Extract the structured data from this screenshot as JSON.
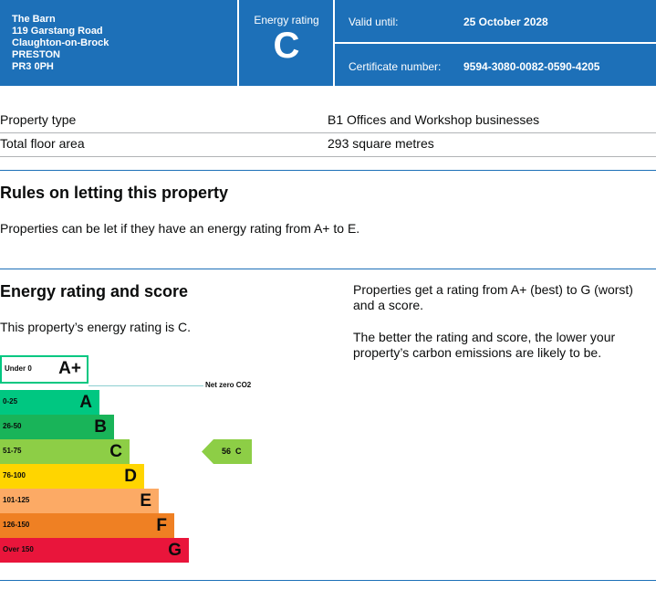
{
  "header": {
    "address": [
      "The Barn",
      "119 Garstang Road",
      "Claughton-on-Brock",
      "PRESTON",
      "PR3 0PH"
    ],
    "energy_rating_label": "Energy rating",
    "energy_rating_letter": "C",
    "valid_until_label": "Valid until:",
    "valid_until_value": "25 October 2028",
    "certificate_label": "Certificate number:",
    "certificate_value": "9594-3080-0082-0590-4205"
  },
  "property": {
    "rows": [
      {
        "label": "Property type",
        "value": "B1 Offices and Workshop businesses"
      },
      {
        "label": "Total floor area",
        "value": "293 square metres"
      }
    ]
  },
  "rules": {
    "heading": "Rules on letting this property",
    "text": "Properties can be let if they have an energy rating from A+ to E."
  },
  "energy": {
    "heading": "Energy rating and score",
    "current_text": "This property’s energy rating is C.",
    "info_1": "Properties get a rating from A+ (best) to G (worst) and a score.",
    "info_2": "The better the rating and score, the lower your property’s carbon emissions are likely to be."
  },
  "chart_data": {
    "type": "bar",
    "categories": [
      "A+",
      "A",
      "B",
      "C",
      "D",
      "E",
      "F",
      "G"
    ],
    "ranges": [
      "Under 0",
      "0-25",
      "26-50",
      "51-75",
      "76-100",
      "101-125",
      "126-150",
      "Over 150"
    ],
    "colors": [
      "#ffffff",
      "#00c781",
      "#19b459",
      "#8dce46",
      "#ffd500",
      "#fcaa65",
      "#ef8023",
      "#e9153b"
    ],
    "net_zero_label": "Net zero CO2",
    "current": {
      "score": "56",
      "rating": "C",
      "color": "#8dce46"
    }
  }
}
